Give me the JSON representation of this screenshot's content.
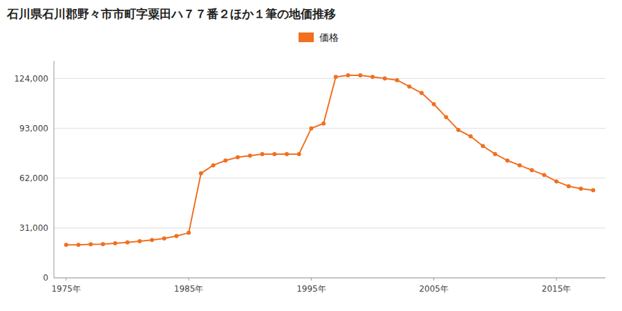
{
  "chart_data": {
    "type": "line",
    "title": "石川県石川郡野々市市町字粟田ハ７７番２ほか１筆の地価推移",
    "x": [
      1975,
      1976,
      1977,
      1978,
      1979,
      1980,
      1981,
      1982,
      1983,
      1984,
      1985,
      1986,
      1987,
      1988,
      1989,
      1990,
      1991,
      1992,
      1993,
      1994,
      1995,
      1996,
      1997,
      1998,
      1999,
      2000,
      2001,
      2002,
      2003,
      2004,
      2005,
      2006,
      2007,
      2008,
      2009,
      2010,
      2011,
      2012,
      2013,
      2014,
      2015,
      2016,
      2017,
      2018
    ],
    "series": [
      {
        "name": "価格",
        "color": "#F07020",
        "marker": "circle",
        "values": [
          20500,
          20500,
          20800,
          21000,
          21500,
          22000,
          22800,
          23500,
          24500,
          26000,
          28000,
          65000,
          70000,
          73000,
          75000,
          76000,
          77000,
          77000,
          77000,
          77000,
          93000,
          96000,
          125000,
          126000,
          126000,
          125000,
          124000,
          123000,
          119000,
          115000,
          108000,
          100000,
          92000,
          88000,
          82000,
          77000,
          73000,
          70000,
          67000,
          64000,
          60000,
          57000,
          55500,
          54500
        ]
      }
    ],
    "xlim": [
      1974,
      2019
    ],
    "ylim": [
      0,
      135000
    ],
    "xticks": [
      {
        "value": 1975,
        "label": "1975年"
      },
      {
        "value": 1985,
        "label": "1985年"
      },
      {
        "value": 1995,
        "label": "1995年"
      },
      {
        "value": 2005,
        "label": "2005年"
      },
      {
        "value": 2015,
        "label": "2015年"
      }
    ],
    "yticks": [
      0,
      {
        "value": 31000,
        "label": "31,000"
      },
      {
        "value": 62000,
        "label": "62,000"
      },
      {
        "value": 93000,
        "label": "93,000"
      },
      {
        "value": 124000,
        "label": "124,000"
      }
    ],
    "grid": true,
    "legend": "top"
  }
}
